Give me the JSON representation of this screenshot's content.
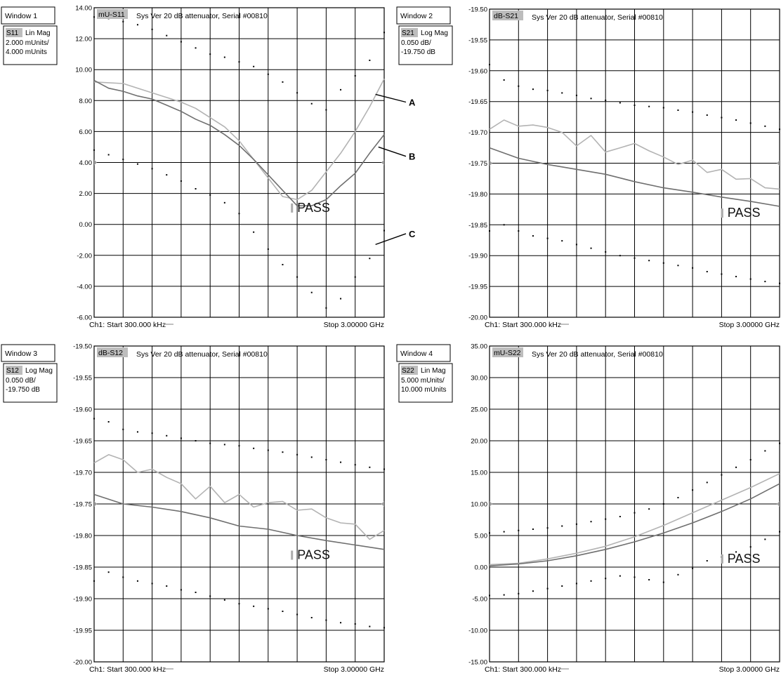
{
  "chart_data": [
    {
      "type": "line",
      "window_label": "Window 1",
      "meas_tag": "mU-S11",
      "title": "Sys Ver 20 dB attenuator, Serial #00810",
      "param_box": {
        "param": "S11",
        "format": "Lin Mag",
        "scale": "2.000 mUnits/",
        "ref": "4.000 mUnits"
      },
      "yticks": [
        "14.00",
        "12.00",
        "10.00",
        "8.00",
        "6.00",
        "4.00",
        "2.00",
        "0.00",
        "-2.00",
        "-4.00",
        "-6.00"
      ],
      "ylim": [
        -6,
        14
      ],
      "xlim": [
        0,
        10
      ],
      "footer_left": "Ch1: Start 300.000 kHz",
      "footer_right": "Stop 3.00000 GHz",
      "pass_text": "PASS",
      "pass_at": [
        7.1,
        0.9
      ],
      "ref_marker_value": 4,
      "callouts": [
        {
          "label": "A",
          "from": [
            9.7,
            8.4
          ],
          "to": [
            10.75,
            7.9
          ]
        },
        {
          "label": "B",
          "from": [
            9.8,
            5.0
          ],
          "to": [
            10.75,
            4.4
          ]
        },
        {
          "label": "C",
          "from": [
            9.7,
            -1.3
          ],
          "to": [
            10.75,
            -0.6
          ]
        }
      ],
      "series": [
        {
          "style": "light",
          "x": [
            0,
            1,
            2,
            2.5,
            3,
            3.5,
            4,
            4.5,
            5,
            5.5,
            6,
            6.5,
            7,
            7.5,
            8,
            8.5,
            9,
            9.5,
            10
          ],
          "y": [
            9.2,
            9.1,
            8.5,
            8.2,
            7.9,
            7.5,
            6.9,
            6.3,
            5.4,
            4.2,
            3.0,
            1.8,
            1.6,
            2.2,
            3.4,
            4.6,
            6.0,
            7.6,
            9.4
          ]
        },
        {
          "style": "dark",
          "x": [
            0,
            0.5,
            1,
            1.5,
            2,
            2.5,
            3,
            3.5,
            4,
            4.5,
            5,
            5.5,
            6,
            6.5,
            7,
            7.5,
            8,
            8.5,
            9,
            9.5,
            10
          ],
          "y": [
            9.3,
            8.8,
            8.6,
            8.3,
            8.1,
            7.7,
            7.3,
            6.8,
            6.4,
            5.8,
            5.1,
            4.2,
            3.2,
            2.2,
            1.2,
            1.2,
            1.6,
            2.5,
            3.3,
            4.6,
            5.8
          ]
        },
        {
          "style": "dots",
          "x": [
            0,
            0.5,
            1,
            1.5,
            2,
            2.5,
            3,
            3.5,
            4,
            4.5,
            5,
            5.5,
            6,
            6.5,
            7,
            7.5,
            8,
            8.5,
            9,
            9.5,
            10
          ],
          "y": [
            13.4,
            13.3,
            13.1,
            12.9,
            12.6,
            12.2,
            11.8,
            11.4,
            11.0,
            10.8,
            10.5,
            10.2,
            9.7,
            9.2,
            8.5,
            7.8,
            7.4,
            8.7,
            9.6,
            10.6,
            12.4
          ]
        },
        {
          "style": "dots",
          "x": [
            0,
            0.5,
            1,
            1.5,
            2,
            2.5,
            3,
            3.5,
            4,
            4.5,
            5,
            5.5,
            6,
            6.5,
            7,
            7.5,
            8,
            8.5,
            9,
            9.5,
            10
          ],
          "y": [
            4.8,
            4.5,
            4.2,
            3.9,
            3.6,
            3.2,
            2.8,
            2.3,
            1.9,
            1.4,
            0.7,
            -0.5,
            -1.6,
            -2.6,
            -3.4,
            -4.4,
            -5.4,
            -4.8,
            -3.4,
            -2.2,
            -0.4
          ]
        }
      ]
    },
    {
      "type": "line",
      "window_label": "Window 2",
      "meas_tag": "dB-S21",
      "title": "Sys Ver 20 dB attenuator, Serial #00810",
      "param_box": {
        "param": "S21",
        "format": "Log Mag",
        "scale": "0.050 dB/",
        "ref": "-19.750 dB"
      },
      "yticks": [
        "-19.50",
        "-19.55",
        "-19.60",
        "-19.65",
        "-19.70",
        "-19.75",
        "-19.80",
        "-19.85",
        "-19.90",
        "-19.95",
        "-20.00"
      ],
      "ylim": [
        -20,
        -19.5
      ],
      "xlim": [
        0,
        10
      ],
      "footer_left": "Ch1: Start 300.000 kHz",
      "footer_right": "Stop 3.00000 GHz",
      "pass_text": "PASS",
      "pass_at": [
        8.3,
        -19.835
      ],
      "ref_marker_value": -19.75,
      "callouts": [],
      "series": [
        {
          "style": "light",
          "x": [
            0,
            0.5,
            1,
            1.5,
            2,
            2.5,
            3,
            3.5,
            4,
            4.5,
            5,
            5.5,
            6,
            6.5,
            7,
            7.5,
            8,
            8.5,
            9,
            9.5,
            10
          ],
          "y": [
            -19.695,
            -19.68,
            -19.69,
            -19.688,
            -19.692,
            -19.7,
            -19.722,
            -19.705,
            -19.732,
            -19.725,
            -19.718,
            -19.73,
            -19.74,
            -19.752,
            -19.745,
            -19.765,
            -19.76,
            -19.776,
            -19.775,
            -19.79,
            -19.792
          ]
        },
        {
          "style": "dark",
          "x": [
            0,
            1,
            2,
            3,
            4,
            5,
            6,
            7,
            8,
            9,
            10
          ],
          "y": [
            -19.725,
            -19.742,
            -19.752,
            -19.76,
            -19.768,
            -19.78,
            -19.79,
            -19.797,
            -19.805,
            -19.812,
            -19.82
          ]
        },
        {
          "style": "dots",
          "x": [
            0,
            0.5,
            1,
            1.5,
            2,
            2.5,
            3,
            3.5,
            4,
            4.5,
            5,
            5.5,
            6,
            6.5,
            7,
            7.5,
            8,
            8.5,
            9,
            9.5,
            10
          ],
          "y": [
            -19.59,
            -19.615,
            -19.625,
            -19.63,
            -19.632,
            -19.636,
            -19.64,
            -19.645,
            -19.648,
            -19.652,
            -19.656,
            -19.658,
            -19.66,
            -19.664,
            -19.667,
            -19.672,
            -19.676,
            -19.68,
            -19.685,
            -19.69,
            -19.695
          ]
        },
        {
          "style": "dots",
          "x": [
            0,
            0.5,
            1,
            1.5,
            2,
            2.5,
            3,
            3.5,
            4,
            4.5,
            5,
            5.5,
            6,
            6.5,
            7,
            7.5,
            8,
            8.5,
            9,
            9.5,
            10
          ],
          "y": [
            -19.86,
            -19.85,
            -19.86,
            -19.868,
            -19.872,
            -19.876,
            -19.882,
            -19.888,
            -19.894,
            -19.9,
            -19.904,
            -19.908,
            -19.912,
            -19.916,
            -19.92,
            -19.926,
            -19.93,
            -19.934,
            -19.938,
            -19.942,
            -19.945
          ]
        }
      ]
    },
    {
      "type": "line",
      "window_label": "Window 3",
      "meas_tag": "dB-S12",
      "title": "Sys Ver 20 dB attenuator, Serial #00810",
      "param_box": {
        "param": "S12",
        "format": "Log Mag",
        "scale": "0.050 dB/",
        "ref": "-19.750 dB"
      },
      "yticks": [
        "-19.50",
        "-19.55",
        "-19.60",
        "-19.65",
        "-19.70",
        "-19.75",
        "-19.80",
        "-19.85",
        "-19.90",
        "-19.95",
        "-20.00"
      ],
      "ylim": [
        -20,
        -19.5
      ],
      "xlim": [
        0,
        10
      ],
      "footer_left": "Ch1: Start 300.000 kHz",
      "footer_right": "Stop 3.00000 GHz",
      "pass_text": "PASS",
      "pass_at": [
        7.1,
        -19.835
      ],
      "ref_marker_value": -19.75,
      "callouts": [],
      "series": [
        {
          "style": "light",
          "x": [
            0,
            0.5,
            1,
            1.5,
            2,
            2.5,
            3,
            3.5,
            4,
            4.5,
            5,
            5.5,
            6,
            6.5,
            7,
            7.5,
            8,
            8.5,
            9,
            9.5,
            10
          ],
          "y": [
            -19.685,
            -19.672,
            -19.68,
            -19.7,
            -19.695,
            -19.708,
            -19.718,
            -19.742,
            -19.722,
            -19.748,
            -19.735,
            -19.755,
            -19.748,
            -19.746,
            -19.76,
            -19.758,
            -19.772,
            -19.78,
            -19.782,
            -19.806,
            -19.792
          ]
        },
        {
          "style": "dark",
          "x": [
            0,
            1,
            2,
            3,
            4,
            5,
            6,
            7,
            8,
            9,
            10
          ],
          "y": [
            -19.735,
            -19.75,
            -19.755,
            -19.762,
            -19.772,
            -19.785,
            -19.79,
            -19.8,
            -19.808,
            -19.815,
            -19.822
          ]
        },
        {
          "style": "dots",
          "x": [
            0,
            0.5,
            1,
            1.5,
            2,
            2.5,
            3,
            3.5,
            4,
            4.5,
            5,
            5.5,
            6,
            6.5,
            7,
            7.5,
            8,
            8.5,
            9,
            9.5,
            10
          ],
          "y": [
            -19.615,
            -19.62,
            -19.632,
            -19.636,
            -19.638,
            -19.642,
            -19.646,
            -19.65,
            -19.654,
            -19.656,
            -19.658,
            -19.662,
            -19.665,
            -19.668,
            -19.672,
            -19.676,
            -19.68,
            -19.684,
            -19.688,
            -19.692,
            -19.695
          ]
        },
        {
          "style": "dots",
          "x": [
            0,
            0.5,
            1,
            1.5,
            2,
            2.5,
            3,
            3.5,
            4,
            4.5,
            5,
            5.5,
            6,
            6.5,
            7,
            7.5,
            8,
            8.5,
            9,
            9.5,
            10
          ],
          "y": [
            -19.872,
            -19.858,
            -19.866,
            -19.872,
            -19.876,
            -19.88,
            -19.886,
            -19.89,
            -19.896,
            -19.902,
            -19.908,
            -19.912,
            -19.916,
            -19.92,
            -19.925,
            -19.93,
            -19.934,
            -19.938,
            -19.94,
            -19.944,
            -19.946
          ]
        }
      ]
    },
    {
      "type": "line",
      "window_label": "Window 4",
      "meas_tag": "mU-S22",
      "title": "Sys Ver 20 dB attenuator, Serial #00810",
      "param_box": {
        "param": "S22",
        "format": "Lin Mag",
        "scale": "5.000 mUnits/",
        "ref": "10.000 mUnits"
      },
      "yticks": [
        "35.00",
        "30.00",
        "25.00",
        "20.00",
        "15.00",
        "10.00",
        "5.00",
        "0.00",
        "-5.00",
        "-10.00",
        "-15.00"
      ],
      "ylim": [
        -15,
        35
      ],
      "xlim": [
        0,
        10
      ],
      "footer_left": "Ch1: Start 300.000 kHz",
      "footer_right": "Stop 3.00000 GHz",
      "pass_text": "PASS",
      "pass_at": [
        8.3,
        0.9
      ],
      "ref_marker_value": 10,
      "callouts": [],
      "series": [
        {
          "style": "light",
          "x": [
            0,
            1,
            2,
            3,
            4,
            5,
            6,
            7,
            8,
            9,
            10
          ],
          "y": [
            0.4,
            0.6,
            1.3,
            2.2,
            3.3,
            4.8,
            6.6,
            8.6,
            10.6,
            12.6,
            14.8
          ]
        },
        {
          "style": "dark",
          "x": [
            0,
            1,
            2,
            3,
            4,
            5,
            6,
            7,
            8,
            9,
            10
          ],
          "y": [
            0.2,
            0.5,
            1.0,
            1.8,
            2.8,
            4.0,
            5.4,
            7.0,
            8.8,
            10.8,
            13.2
          ]
        },
        {
          "style": "dots",
          "x": [
            0,
            0.5,
            1,
            1.5,
            2,
            2.5,
            3,
            3.5,
            4,
            4.5,
            5,
            5.5,
            6,
            6.5,
            7,
            7.5,
            8,
            8.5,
            9,
            9.5,
            10
          ],
          "y": [
            5.4,
            5.6,
            5.8,
            6.0,
            6.2,
            6.5,
            6.8,
            7.2,
            7.6,
            8.0,
            8.6,
            9.2,
            10.0,
            11.0,
            12.2,
            13.4,
            14.6,
            15.8,
            17.0,
            18.4,
            19.6
          ]
        },
        {
          "style": "dots",
          "x": [
            0,
            0.5,
            1,
            1.5,
            2,
            2.5,
            3,
            3.5,
            4,
            4.5,
            5,
            5.5,
            6,
            6.5,
            7,
            7.5,
            8,
            8.5,
            9,
            9.5,
            10
          ],
          "y": [
            -4.5,
            -4.4,
            -4.2,
            -3.8,
            -3.4,
            -3.0,
            -2.6,
            -2.2,
            -1.8,
            -1.4,
            -1.6,
            -2.0,
            -2.4,
            -1.2,
            -0.2,
            1.0,
            1.6,
            2.4,
            3.2,
            4.4,
            5.6
          ]
        }
      ]
    }
  ]
}
